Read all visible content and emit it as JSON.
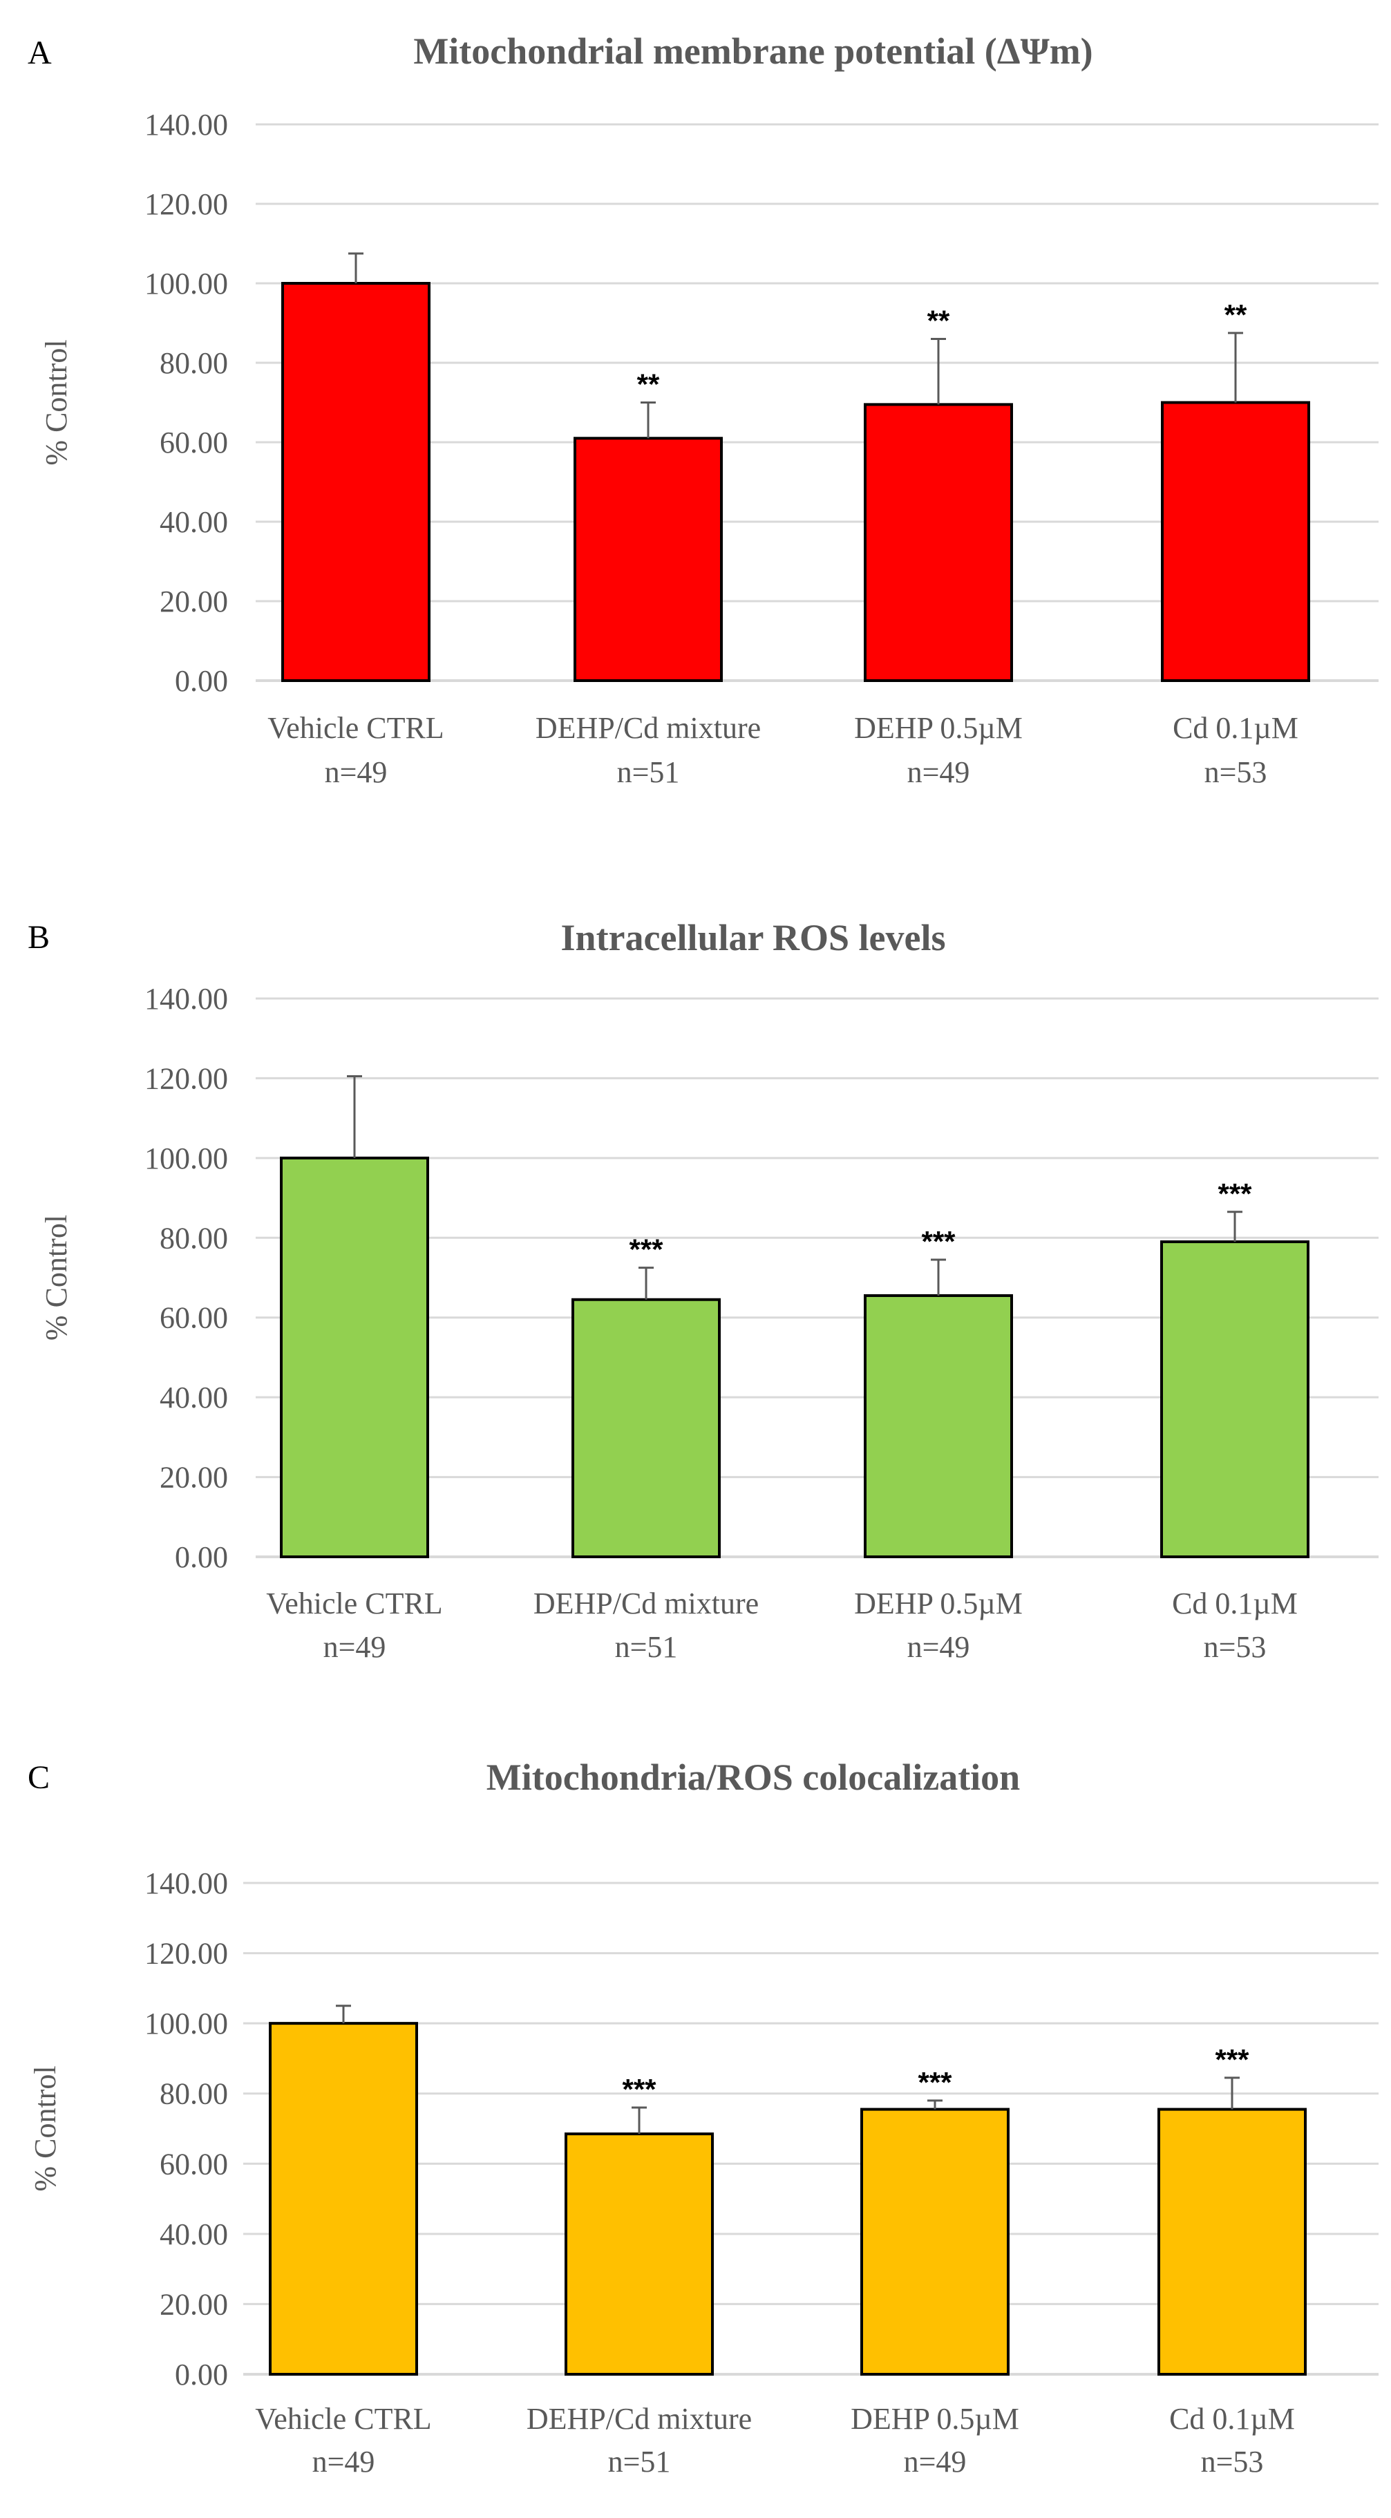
{
  "chart_data": [
    {
      "type": "bar",
      "panel": "A",
      "title": "Mitochondrial membrane potential (ΔΨm)",
      "ylabel": "% Control",
      "xlabel": "",
      "ylim": [
        0,
        140
      ],
      "yticks": [
        "0.00",
        "20.00",
        "40.00",
        "60.00",
        "80.00",
        "100.00",
        "120.00",
        "140.00"
      ],
      "color": "#ff0000",
      "categories": [
        "Vehicle CTRL",
        "DEHP/Cd mixture",
        "DEHP 0.5µM",
        "Cd 0.1µM"
      ],
      "n_labels": [
        "n=49",
        "n=51",
        "n=49",
        "n=53"
      ],
      "values": [
        100,
        61,
        69.5,
        70
      ],
      "errors": [
        7.5,
        9,
        16.5,
        17.5
      ],
      "significance": [
        "",
        "**",
        "**",
        "**"
      ]
    },
    {
      "type": "bar",
      "panel": "B",
      "title": "Intracellular ROS levels",
      "ylabel": "% Control",
      "xlabel": "",
      "ylim": [
        0,
        140
      ],
      "yticks": [
        "0.00",
        "20.00",
        "40.00",
        "60.00",
        "80.00",
        "100.00",
        "120.00",
        "140.00"
      ],
      "color": "#92d050",
      "categories": [
        "Vehicle CTRL",
        "DEHP/Cd mixture",
        "DEHP 0.5µM",
        "Cd 0.1µM"
      ],
      "n_labels": [
        "n=49",
        "n=51",
        "n=49",
        "n=53"
      ],
      "values": [
        100,
        64.5,
        65.5,
        79
      ],
      "errors": [
        20.5,
        8,
        9,
        7.5
      ],
      "significance": [
        "",
        "***",
        "***",
        "***"
      ]
    },
    {
      "type": "bar",
      "panel": "C",
      "title": "Mitochondria/ROS colocalization",
      "ylabel": "% Control",
      "xlabel": "",
      "ylim": [
        0,
        140
      ],
      "yticks": [
        "0.00",
        "20.00",
        "40.00",
        "60.00",
        "80.00",
        "100.00",
        "120.00",
        "140.00"
      ],
      "color": "#ffc000",
      "categories": [
        "Vehicle CTRL",
        "DEHP/Cd mixture",
        "DEHP 0.5µM",
        "Cd 0.1µM"
      ],
      "n_labels": [
        "n=49",
        "n=51",
        "n=49",
        "n=53"
      ],
      "values": [
        100,
        68.5,
        75.5,
        75.5
      ],
      "errors": [
        5,
        7.5,
        2.5,
        9
      ],
      "significance": [
        "",
        "***",
        "***",
        "***"
      ]
    }
  ]
}
